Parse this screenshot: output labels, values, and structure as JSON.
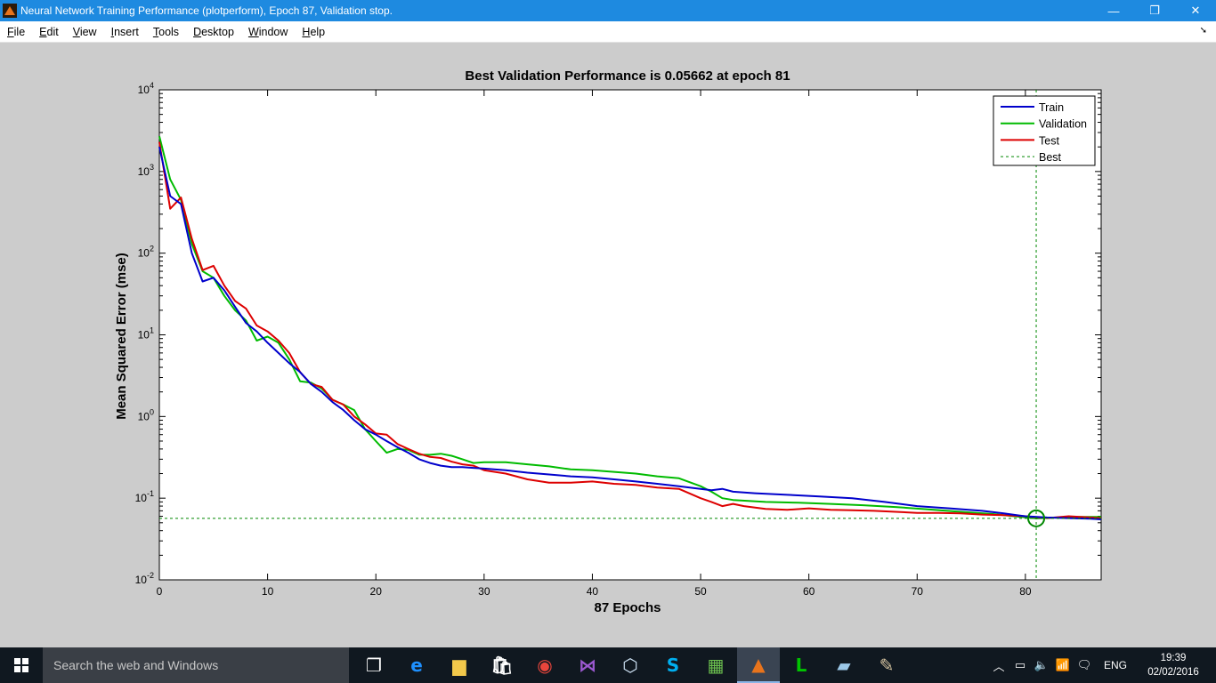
{
  "window": {
    "title": "Neural Network Training Performance (plotperform), Epoch 87, Validation stop.",
    "minimize": "—",
    "restore": "❐",
    "close": "✕"
  },
  "menu": {
    "items": [
      {
        "label": "File",
        "u": "F",
        "rest": "ile"
      },
      {
        "label": "Edit",
        "u": "E",
        "rest": "dit"
      },
      {
        "label": "View",
        "u": "V",
        "rest": "iew"
      },
      {
        "label": "Insert",
        "u": "I",
        "rest": "nsert"
      },
      {
        "label": "Tools",
        "u": "T",
        "rest": "ools"
      },
      {
        "label": "Desktop",
        "u": "D",
        "rest": "esktop"
      },
      {
        "label": "Window",
        "u": "W",
        "rest": "indow"
      },
      {
        "label": "Help",
        "u": "H",
        "rest": "elp"
      }
    ],
    "overflow": "➘"
  },
  "chart_data": {
    "type": "line",
    "title": "Best Validation Performance is 0.05662 at epoch 81",
    "xlabel": "87 Epochs",
    "ylabel": "Mean Squared Error  (mse)",
    "xlim": [
      0,
      87
    ],
    "ylim": [
      0.01,
      10000
    ],
    "yscale": "log",
    "xticks": [
      0,
      10,
      20,
      30,
      40,
      50,
      60,
      70,
      80
    ],
    "yticks": [
      {
        "base": "10",
        "exp": "4",
        "value": 10000
      },
      {
        "base": "10",
        "exp": "3",
        "value": 1000
      },
      {
        "base": "10",
        "exp": "2",
        "value": 100
      },
      {
        "base": "10",
        "exp": "1",
        "value": 10
      },
      {
        "base": "10",
        "exp": "0",
        "value": 1
      },
      {
        "base": "10",
        "exp": "-1",
        "value": 0.1
      },
      {
        "base": "10",
        "exp": "-2",
        "value": 0.01
      }
    ],
    "legend_position": "top-right",
    "best": {
      "epoch": 81,
      "value": 0.05662
    },
    "series": [
      {
        "name": "Train",
        "color": "#0000cc",
        "points": [
          [
            0,
            2000
          ],
          [
            1,
            500
          ],
          [
            2,
            400
          ],
          [
            3,
            100
          ],
          [
            4,
            45
          ],
          [
            5,
            50
          ],
          [
            6,
            35
          ],
          [
            7,
            22
          ],
          [
            8,
            14
          ],
          [
            9,
            11
          ],
          [
            10,
            8
          ],
          [
            11,
            6
          ],
          [
            12,
            4.5
          ],
          [
            13,
            3.5
          ],
          [
            14,
            2.5
          ],
          [
            15,
            2
          ],
          [
            16,
            1.5
          ],
          [
            17,
            1.2
          ],
          [
            18,
            0.9
          ],
          [
            19,
            0.7
          ],
          [
            20,
            0.6
          ],
          [
            21,
            0.5
          ],
          [
            22,
            0.42
          ],
          [
            23,
            0.36
          ],
          [
            24,
            0.3
          ],
          [
            25,
            0.27
          ],
          [
            26,
            0.25
          ],
          [
            27,
            0.24
          ],
          [
            28,
            0.24
          ],
          [
            29,
            0.235
          ],
          [
            30,
            0.23
          ],
          [
            32,
            0.22
          ],
          [
            34,
            0.205
          ],
          [
            36,
            0.195
          ],
          [
            38,
            0.185
          ],
          [
            40,
            0.18
          ],
          [
            42,
            0.17
          ],
          [
            44,
            0.16
          ],
          [
            46,
            0.15
          ],
          [
            48,
            0.14
          ],
          [
            50,
            0.13
          ],
          [
            51,
            0.125
          ],
          [
            52,
            0.13
          ],
          [
            53,
            0.12
          ],
          [
            55,
            0.115
          ],
          [
            58,
            0.11
          ],
          [
            61,
            0.105
          ],
          [
            64,
            0.1
          ],
          [
            67,
            0.09
          ],
          [
            70,
            0.08
          ],
          [
            73,
            0.075
          ],
          [
            76,
            0.07
          ],
          [
            78,
            0.065
          ],
          [
            80,
            0.06
          ],
          [
            82,
            0.058
          ],
          [
            84,
            0.057
          ],
          [
            86,
            0.056
          ],
          [
            87,
            0.055
          ]
        ]
      },
      {
        "name": "Validation",
        "color": "#00bb00",
        "points": [
          [
            0,
            2700
          ],
          [
            1,
            800
          ],
          [
            2,
            450
          ],
          [
            3,
            130
          ],
          [
            4,
            60
          ],
          [
            5,
            50
          ],
          [
            6,
            30
          ],
          [
            7,
            20
          ],
          [
            8,
            15
          ],
          [
            9,
            8.5
          ],
          [
            10,
            9.5
          ],
          [
            11,
            8
          ],
          [
            12,
            5
          ],
          [
            13,
            2.7
          ],
          [
            14,
            2.6
          ],
          [
            15,
            2.2
          ],
          [
            16,
            1.6
          ],
          [
            17,
            1.4
          ],
          [
            18,
            1.2
          ],
          [
            19,
            0.7
          ],
          [
            20,
            0.5
          ],
          [
            21,
            0.36
          ],
          [
            22,
            0.4
          ],
          [
            23,
            0.39
          ],
          [
            24,
            0.34
          ],
          [
            25,
            0.34
          ],
          [
            26,
            0.35
          ],
          [
            27,
            0.33
          ],
          [
            28,
            0.3
          ],
          [
            29,
            0.27
          ],
          [
            30,
            0.275
          ],
          [
            32,
            0.275
          ],
          [
            34,
            0.26
          ],
          [
            36,
            0.245
          ],
          [
            38,
            0.225
          ],
          [
            40,
            0.22
          ],
          [
            42,
            0.21
          ],
          [
            44,
            0.2
          ],
          [
            46,
            0.185
          ],
          [
            48,
            0.175
          ],
          [
            50,
            0.14
          ],
          [
            51,
            0.12
          ],
          [
            52,
            0.1
          ],
          [
            53,
            0.095
          ],
          [
            56,
            0.09
          ],
          [
            59,
            0.088
          ],
          [
            62,
            0.085
          ],
          [
            65,
            0.082
          ],
          [
            68,
            0.078
          ],
          [
            71,
            0.073
          ],
          [
            74,
            0.068
          ],
          [
            77,
            0.064
          ],
          [
            79,
            0.06
          ],
          [
            81,
            0.05662
          ],
          [
            83,
            0.058
          ],
          [
            85,
            0.059
          ],
          [
            87,
            0.059
          ]
        ]
      },
      {
        "name": "Test",
        "color": "#dd0000",
        "points": [
          [
            0,
            2300
          ],
          [
            1,
            350
          ],
          [
            2,
            480
          ],
          [
            3,
            150
          ],
          [
            4,
            62
          ],
          [
            5,
            70
          ],
          [
            6,
            40
          ],
          [
            7,
            26
          ],
          [
            8,
            21
          ],
          [
            9,
            13
          ],
          [
            10,
            11
          ],
          [
            11,
            8.5
          ],
          [
            12,
            6
          ],
          [
            13,
            3.5
          ],
          [
            14,
            2.5
          ],
          [
            15,
            2.3
          ],
          [
            16,
            1.6
          ],
          [
            17,
            1.4
          ],
          [
            18,
            1
          ],
          [
            19,
            0.8
          ],
          [
            20,
            0.62
          ],
          [
            21,
            0.6
          ],
          [
            22,
            0.46
          ],
          [
            23,
            0.4
          ],
          [
            24,
            0.35
          ],
          [
            25,
            0.32
          ],
          [
            26,
            0.31
          ],
          [
            27,
            0.28
          ],
          [
            28,
            0.26
          ],
          [
            29,
            0.25
          ],
          [
            30,
            0.22
          ],
          [
            32,
            0.2
          ],
          [
            34,
            0.17
          ],
          [
            36,
            0.155
          ],
          [
            38,
            0.155
          ],
          [
            40,
            0.16
          ],
          [
            42,
            0.15
          ],
          [
            44,
            0.145
          ],
          [
            46,
            0.135
          ],
          [
            48,
            0.13
          ],
          [
            50,
            0.1
          ],
          [
            51,
            0.09
          ],
          [
            52,
            0.08
          ],
          [
            53,
            0.085
          ],
          [
            54,
            0.08
          ],
          [
            56,
            0.074
          ],
          [
            58,
            0.072
          ],
          [
            60,
            0.075
          ],
          [
            62,
            0.072
          ],
          [
            64,
            0.071
          ],
          [
            66,
            0.07
          ],
          [
            68,
            0.068
          ],
          [
            70,
            0.066
          ],
          [
            72,
            0.066
          ],
          [
            74,
            0.065
          ],
          [
            76,
            0.063
          ],
          [
            78,
            0.062
          ],
          [
            80,
            0.06
          ],
          [
            82,
            0.057
          ],
          [
            84,
            0.06
          ],
          [
            86,
            0.058
          ],
          [
            87,
            0.057
          ]
        ]
      },
      {
        "name": "Best",
        "color": "#008800",
        "style": "dotted"
      }
    ]
  },
  "taskbar": {
    "search_placeholder": "Search the web and Windows",
    "apps": [
      {
        "name": "task-view-icon",
        "glyph": "❐",
        "color": "#ffffff"
      },
      {
        "name": "edge-icon",
        "glyph": "e",
        "color": "#1e90ff"
      },
      {
        "name": "file-explorer-icon",
        "glyph": "▆",
        "color": "#f2c84b"
      },
      {
        "name": "store-icon",
        "glyph": "🛍",
        "color": "#ffffff"
      },
      {
        "name": "chrome-icon",
        "glyph": "◉",
        "color": "#e8453c"
      },
      {
        "name": "visual-studio-icon",
        "glyph": "⋈",
        "color": "#9b59d0"
      },
      {
        "name": "box-app-icon",
        "glyph": "⬡",
        "color": "#cfe3f5"
      },
      {
        "name": "skype-icon",
        "glyph": "S",
        "color": "#00aff0"
      },
      {
        "name": "project-chart-icon",
        "glyph": "▦",
        "color": "#6bbf4e"
      },
      {
        "name": "matlab-icon",
        "glyph": "▲",
        "color": "#e8741c"
      },
      {
        "name": "line-icon",
        "glyph": "L",
        "color": "#00c300"
      },
      {
        "name": "notebook-icon",
        "glyph": "▰",
        "color": "#9cc8e8"
      },
      {
        "name": "paint-icon",
        "glyph": "✎",
        "color": "#d8c6a2"
      }
    ],
    "tray": {
      "chevron": "︿",
      "battery": "▭",
      "volume": "🔈",
      "network": "📶",
      "notifications": "🗨",
      "language": "ENG",
      "time": "19:39",
      "date": "02/02/2016"
    }
  }
}
